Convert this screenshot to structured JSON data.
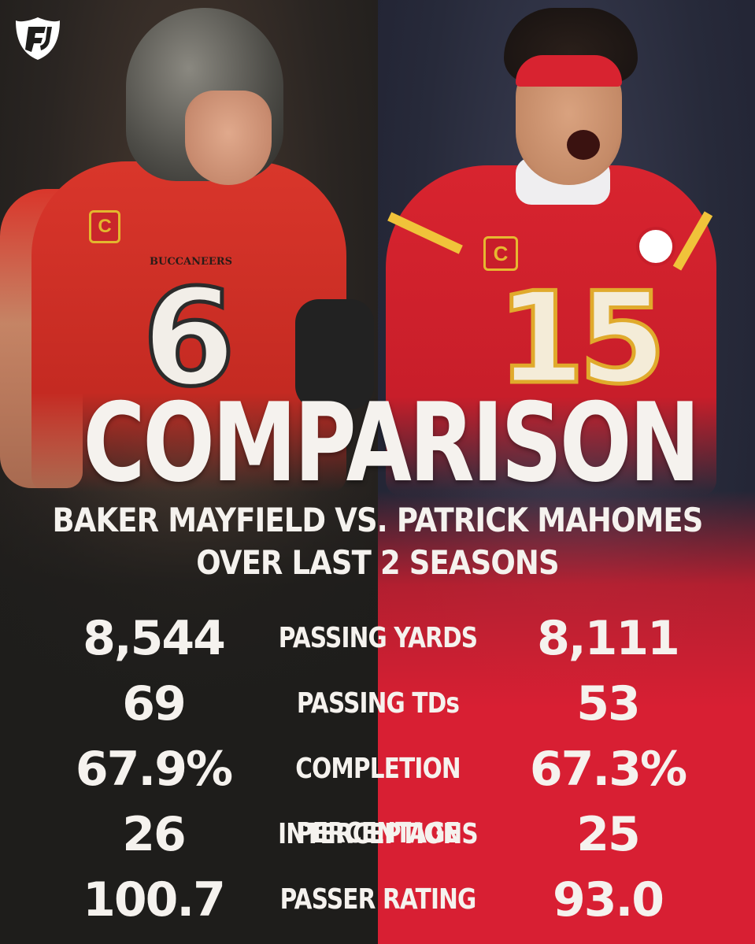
{
  "headline": "COMPARISON",
  "subtitle_line1": "BAKER MAYFIELD VS. PATRICK MAHOMES",
  "subtitle_line2": "OVER LAST 2 SEASONS",
  "left_player": {
    "jersey_number": "6",
    "team_wordmark": "BUCCANEERS",
    "captain_patch": "C"
  },
  "right_player": {
    "jersey_number": "15",
    "captain_patch": "C"
  },
  "brand_icon": "fanduel-shield-icon",
  "colors": {
    "left_bg": "#1e1d1b",
    "right_bg": "#d81f33",
    "text": "#f5f2ee"
  },
  "stats": [
    {
      "label": "PASSING YARDS",
      "left": "8,544",
      "right": "8,111"
    },
    {
      "label": "PASSING TDs",
      "left": "69",
      "right": "53"
    },
    {
      "label": "COMPLETION PERCENTAGE",
      "left": "67.9%",
      "right": "67.3%"
    },
    {
      "label": "INTERCEPTIONS",
      "left": "26",
      "right": "25"
    },
    {
      "label": "PASSER RATING",
      "left": "100.7",
      "right": "93.0"
    }
  ]
}
